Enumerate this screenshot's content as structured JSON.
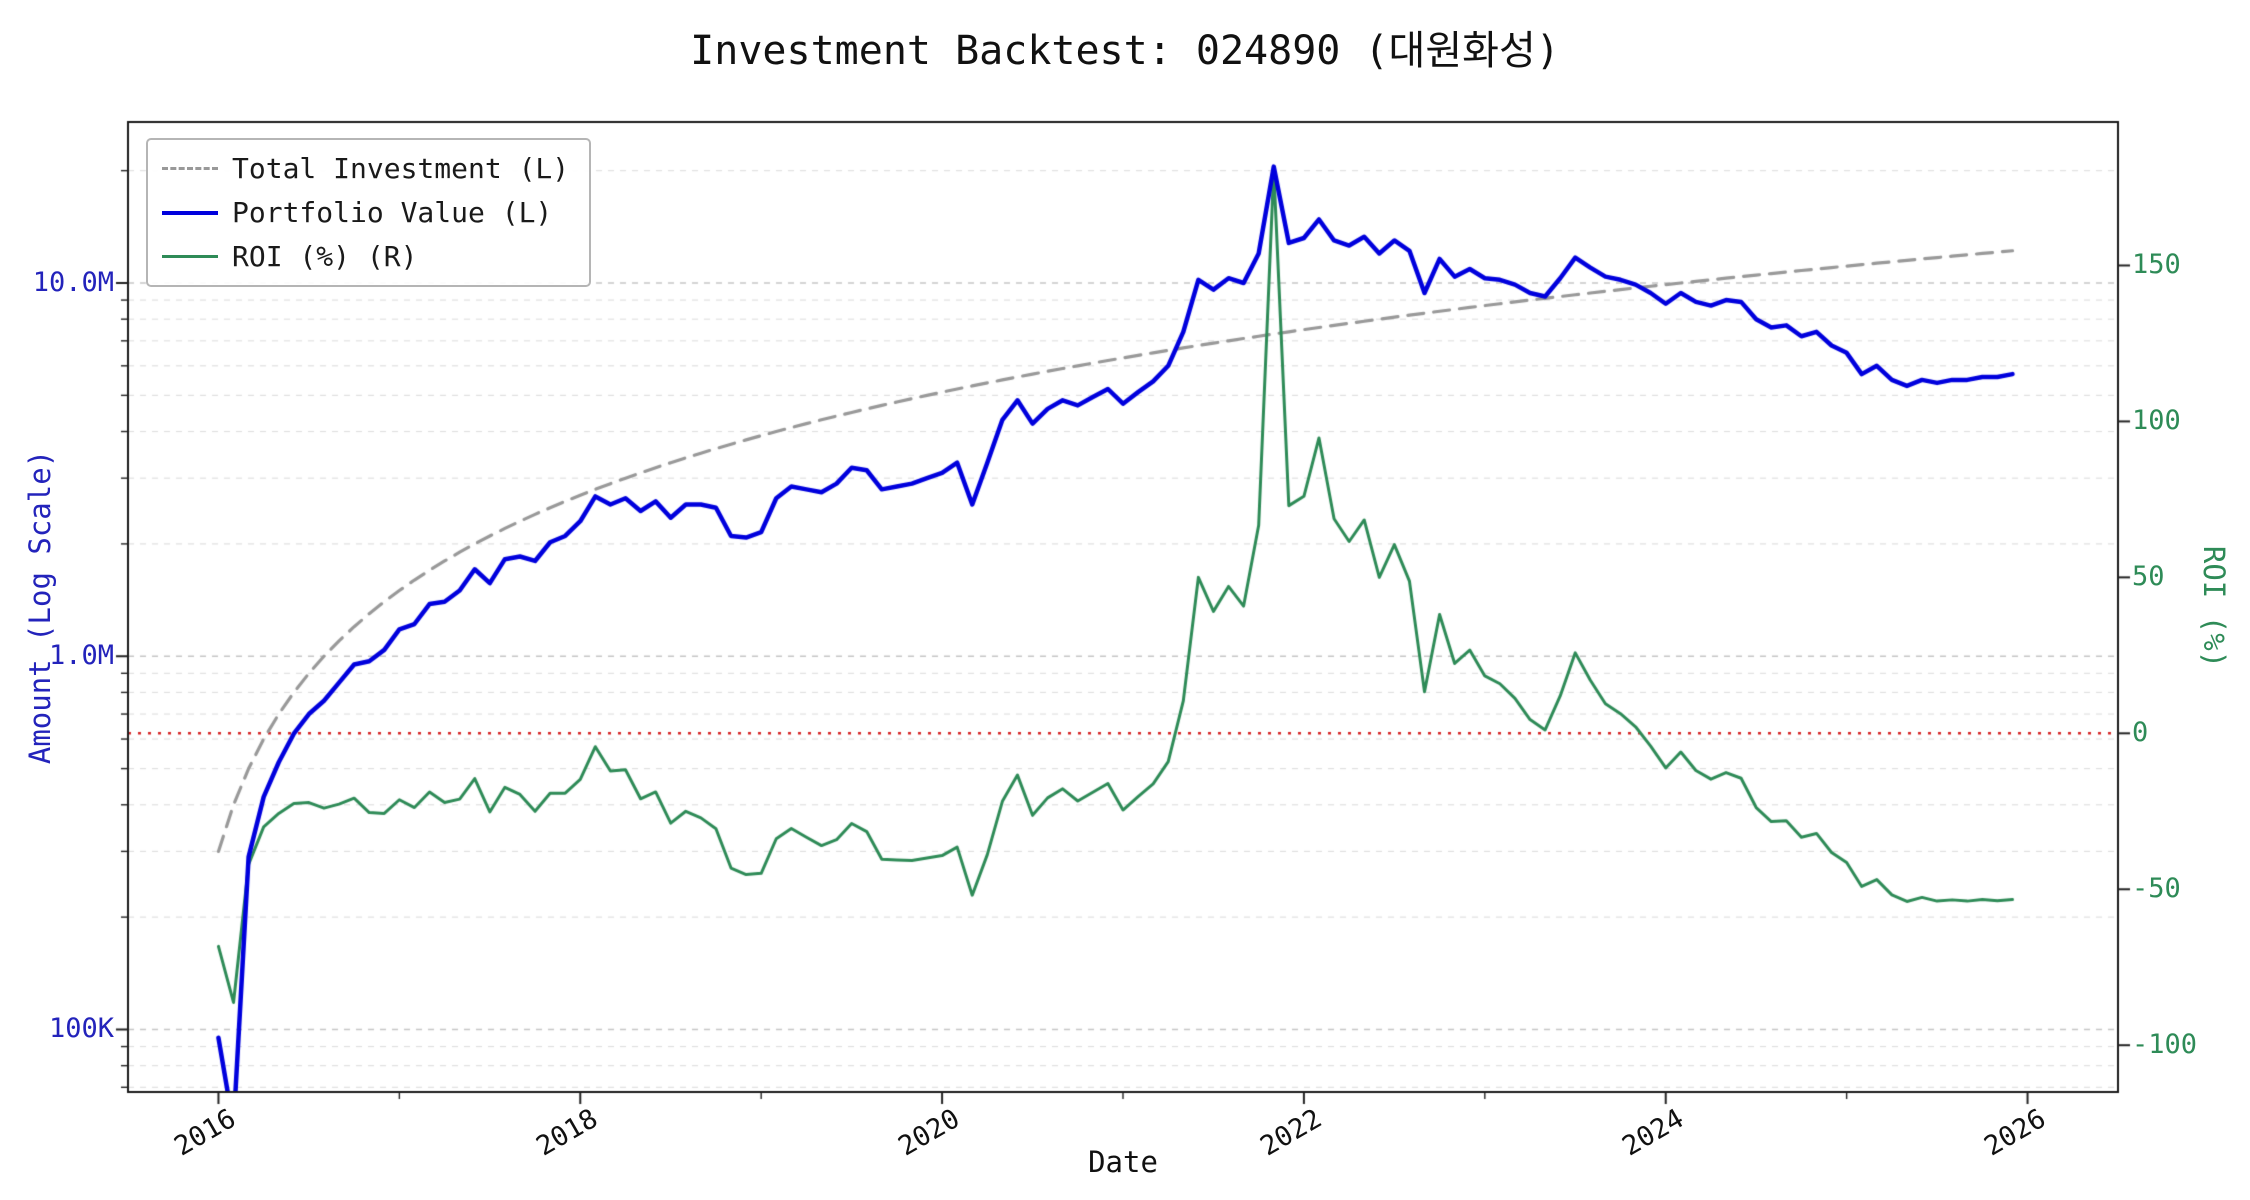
{
  "title": "Investment Backtest: 024890 (대원화성)",
  "chart_data": {
    "type": "line",
    "title": "Investment Backtest: 024890 (대원화성)",
    "xlabel": "Date",
    "ylabel_left": "Amount (Log Scale)",
    "ylabel_right": "ROI (%)",
    "x_start": "2016-01",
    "x_interval": "monthly",
    "n_points": 120,
    "xlim_years": [
      2015.5,
      2026.5
    ],
    "x_ticks": {
      "years": [
        2016,
        2018,
        2020,
        2022,
        2024,
        2026
      ],
      "labels": [
        "2016",
        "2018",
        "2020",
        "2022",
        "2024",
        "2026"
      ],
      "minor_years": [
        2017,
        2019,
        2021,
        2023,
        2025
      ]
    },
    "left_axis": {
      "scale": "log",
      "tick_values": [
        10000000,
        1000000,
        100000
      ],
      "tick_labels": [
        "10.0M",
        "1.0M",
        "100K"
      ],
      "ylim": [
        68000,
        27000000
      ],
      "color": "#2323bb",
      "grid": true
    },
    "right_axis": {
      "scale": "linear",
      "tick_values": [
        150,
        100,
        50,
        0,
        -50,
        -100
      ],
      "tick_labels": [
        "150",
        "100",
        "50",
        "0",
        "-50",
        "-100"
      ],
      "ylim": [
        -115,
        196
      ],
      "color": "#2e8b57"
    },
    "zero_line": {
      "axis": "right",
      "value": 0,
      "color": "#d62728",
      "style": "dotted"
    },
    "legend_position": "upper-left",
    "values_unit": "millions",
    "series": [
      {
        "name": "Total Investment (L)",
        "axis": "left",
        "color": "#999999",
        "style": "dashed",
        "linewidth": 3.2,
        "values": [
          0.3,
          0.4,
          0.5,
          0.6,
          0.7,
          0.8,
          0.9,
          1.0,
          1.1,
          1.2,
          1.3,
          1.4,
          1.5,
          1.6,
          1.7,
          1.8,
          1.9,
          2.0,
          2.1,
          2.2,
          2.3,
          2.4,
          2.5,
          2.6,
          2.7,
          2.8,
          2.9,
          3.0,
          3.1,
          3.2,
          3.3,
          3.4,
          3.5,
          3.6,
          3.7,
          3.8,
          3.9,
          4.0,
          4.1,
          4.2,
          4.3,
          4.4,
          4.5,
          4.6,
          4.7,
          4.8,
          4.9,
          5.0,
          5.1,
          5.2,
          5.3,
          5.4,
          5.5,
          5.6,
          5.7,
          5.8,
          5.9,
          6.0,
          6.1,
          6.2,
          6.3,
          6.4,
          6.5,
          6.6,
          6.7,
          6.8,
          6.9,
          7.0,
          7.1,
          7.2,
          7.3,
          7.4,
          7.5,
          7.6,
          7.7,
          7.8,
          7.9,
          8.0,
          8.1,
          8.2,
          8.3,
          8.4,
          8.5,
          8.6,
          8.7,
          8.8,
          8.9,
          9.0,
          9.1,
          9.2,
          9.3,
          9.4,
          9.5,
          9.6,
          9.7,
          9.8,
          9.9,
          10.0,
          10.1,
          10.2,
          10.3,
          10.4,
          10.5,
          10.6,
          10.7,
          10.8,
          10.9,
          11.0,
          11.1,
          11.2,
          11.3,
          11.4,
          11.5,
          11.6,
          11.7,
          11.8,
          11.9,
          12.0,
          12.1,
          12.2
        ]
      },
      {
        "name": "Portfolio Value (L)",
        "axis": "left",
        "color": "#0000dd",
        "style": "solid",
        "linewidth": 4.5,
        "values": [
          0.095,
          0.055,
          0.29,
          0.42,
          0.52,
          0.62,
          0.7,
          0.76,
          0.85,
          0.95,
          0.97,
          1.04,
          1.18,
          1.22,
          1.38,
          1.4,
          1.5,
          1.71,
          1.57,
          1.82,
          1.85,
          1.8,
          2.02,
          2.1,
          2.3,
          2.68,
          2.55,
          2.65,
          2.45,
          2.6,
          2.35,
          2.55,
          2.55,
          2.5,
          2.1,
          2.08,
          2.15,
          2.65,
          2.85,
          2.8,
          2.75,
          2.9,
          3.2,
          3.15,
          2.8,
          2.85,
          2.9,
          3.0,
          3.1,
          3.3,
          2.55,
          3.3,
          4.3,
          4.85,
          4.2,
          4.6,
          4.85,
          4.7,
          4.95,
          5.2,
          4.75,
          5.1,
          5.45,
          6.0,
          7.4,
          10.2,
          9.6,
          10.3,
          10.0,
          12.0,
          20.5,
          12.8,
          13.2,
          14.8,
          13.0,
          12.6,
          13.3,
          12.0,
          13.0,
          12.2,
          9.4,
          11.6,
          10.4,
          10.9,
          10.3,
          10.2,
          9.9,
          9.4,
          9.2,
          10.3,
          11.7,
          11.0,
          10.4,
          10.2,
          9.9,
          9.4,
          8.8,
          9.4,
          8.9,
          8.7,
          9.0,
          8.9,
          8.0,
          7.6,
          7.7,
          7.2,
          7.4,
          6.8,
          6.5,
          5.7,
          6.0,
          5.5,
          5.3,
          5.5,
          5.4,
          5.5,
          5.5,
          5.6,
          5.6,
          5.7
        ]
      },
      {
        "name": "ROI (%) (R)",
        "axis": "right",
        "color": "#2e8b57",
        "style": "solid",
        "linewidth": 3.0,
        "values": [
          -68.3,
          -86.3,
          -42,
          -30,
          -25.7,
          -22.5,
          -22.2,
          -24,
          -22.7,
          -20.8,
          -25.4,
          -25.7,
          -21.3,
          -23.8,
          -18.8,
          -22.2,
          -21.1,
          -14.5,
          -25.2,
          -17.3,
          -19.6,
          -25,
          -19.2,
          -19.2,
          -14.8,
          -4.3,
          -12.1,
          -11.7,
          -21,
          -18.8,
          -28.8,
          -25,
          -27.1,
          -30.6,
          -43.2,
          -45.3,
          -44.9,
          -33.8,
          -30.5,
          -33.3,
          -36,
          -34.1,
          -28.9,
          -31.5,
          -40.4,
          -40.6,
          -40.8,
          -40,
          -39.2,
          -36.5,
          -51.9,
          -38.9,
          -21.8,
          -13.4,
          -26.3,
          -20.7,
          -17.8,
          -21.7,
          -18.9,
          -16.1,
          -24.6,
          -20.3,
          -16.2,
          -9.1,
          10.4,
          50,
          39.1,
          47.1,
          40.8,
          66.7,
          180.8,
          73,
          76,
          94.7,
          68.8,
          61.5,
          68.4,
          50,
          60.5,
          48.8,
          13.3,
          38.1,
          22.4,
          26.7,
          18.4,
          15.9,
          11.2,
          4.4,
          1.1,
          12,
          25.8,
          17,
          9.5,
          6.3,
          2.1,
          -4.1,
          -11.1,
          -6,
          -11.9,
          -14.7,
          -12.6,
          -14.4,
          -23.8,
          -28.3,
          -28,
          -33.3,
          -32.1,
          -38.2,
          -41.4,
          -49.1,
          -46.9,
          -51.8,
          -53.9,
          -52.6,
          -53.8,
          -53.4,
          -53.8,
          -53.3,
          -53.7,
          -53.3
        ]
      }
    ]
  }
}
